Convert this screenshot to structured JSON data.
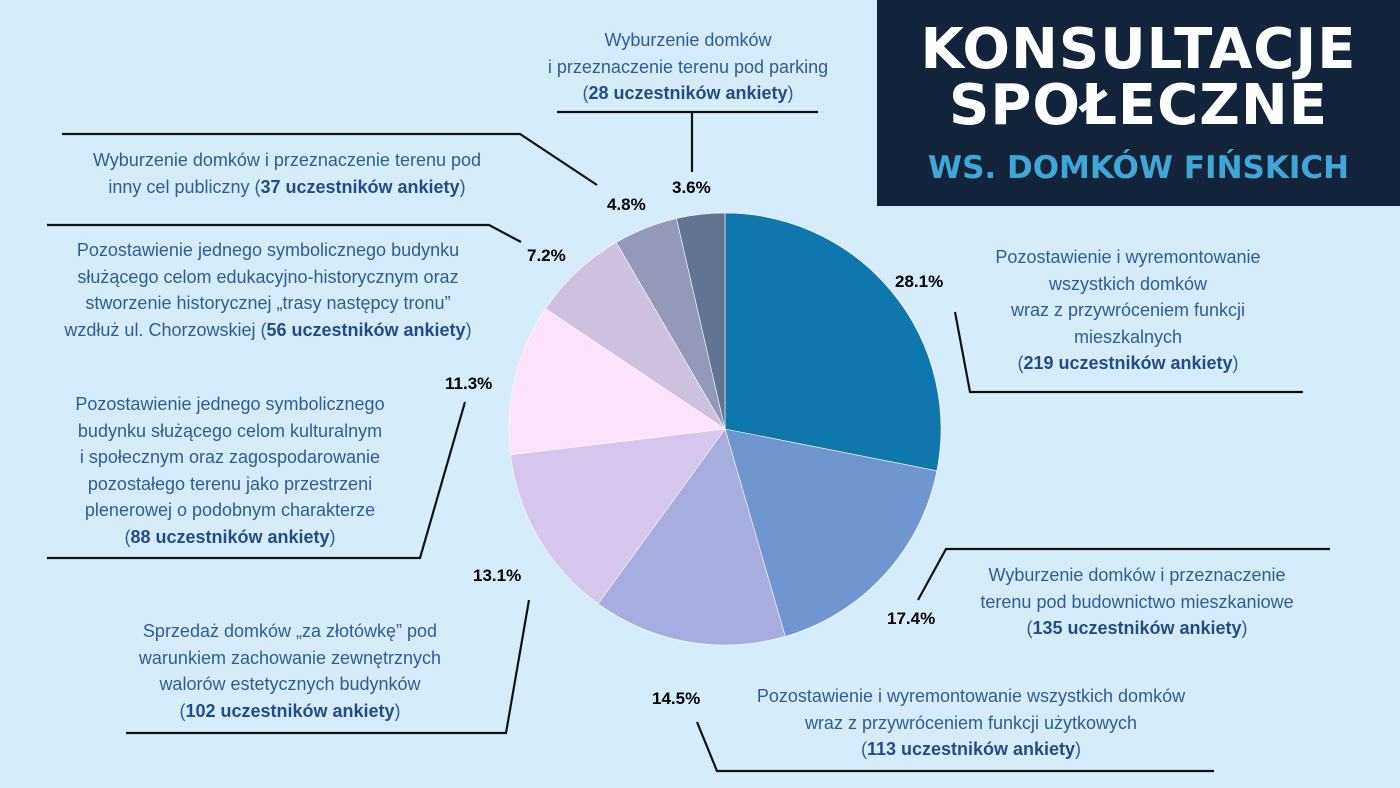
{
  "header": {
    "title_line1": "KONSULTACJE",
    "title_line2": "SPOŁECZNE",
    "subtitle": "WS. DOMKÓW FIŃSKICH"
  },
  "chart_data": {
    "type": "pie",
    "slices": [
      {
        "label_lines": [
          "Pozostawienie i wyremontowanie",
          "wszystkich domków",
          "wraz z przywróceniem funkcji",
          "mieszkalnych"
        ],
        "count_text": "219 uczestników ankiety",
        "percent": 28.1,
        "percent_label": "28.1%",
        "color": "#0f77ac"
      },
      {
        "label_lines": [
          "Wyburzenie domków i przeznaczenie",
          "terenu pod budownictwo mieszkaniowe"
        ],
        "count_text": "135 uczestników ankiety",
        "percent": 17.4,
        "percent_label": "17.4%",
        "color": "#6f96ce"
      },
      {
        "label_lines": [
          "Pozostawienie i wyremontowanie wszystkich domków",
          "wraz z przywróceniem funkcji użytkowych"
        ],
        "count_text": "113 uczestników ankiety",
        "percent": 14.5,
        "percent_label": "14.5%",
        "color": "#a7addf"
      },
      {
        "label_lines": [
          "Sprzedaż domków „za złotówkę” pod",
          "warunkiem zachowanie zewnętrznych",
          "walorów estetycznych budynków"
        ],
        "count_text": "102 uczestników ankiety",
        "percent": 13.1,
        "percent_label": "13.1%",
        "color": "#d6c6ec"
      },
      {
        "label_lines": [
          "Pozostawienie jednego symbolicznego",
          "budynku służącego celom kulturalnym",
          "i społecznym oraz zagospodarowanie",
          "pozostałego terenu jako przestrzeni",
          "plenerowej o podobnym charakterze"
        ],
        "count_text": "88 uczestników ankiety",
        "percent": 11.3,
        "percent_label": "11.3%",
        "color": "#fce2fa"
      },
      {
        "label_lines": [
          "Pozostawienie jednego symbolicznego budynku",
          "służącego celom edukacyjno-historycznym oraz",
          "stworzenie historycznej „trasy następcy tronu”",
          "wzdłuż ul. Chorzowskiej"
        ],
        "count_text": "56 uczestników ankiety",
        "percent": 7.2,
        "percent_label": "7.2%",
        "color": "#cec1de"
      },
      {
        "label_lines": [
          "Wyburzenie domków i przeznaczenie terenu pod",
          "inny cel publiczny"
        ],
        "count_text": "37 uczestników ankiety",
        "percent": 4.8,
        "percent_label": "4.8%",
        "color": "#9399b6"
      },
      {
        "label_lines": [
          "Wyburzenie domków",
          "i przeznaczenie terenu pod parking"
        ],
        "count_text": "28 uczestników ankiety",
        "percent": 3.6,
        "percent_label": "3.6%",
        "color": "#627490"
      }
    ]
  }
}
